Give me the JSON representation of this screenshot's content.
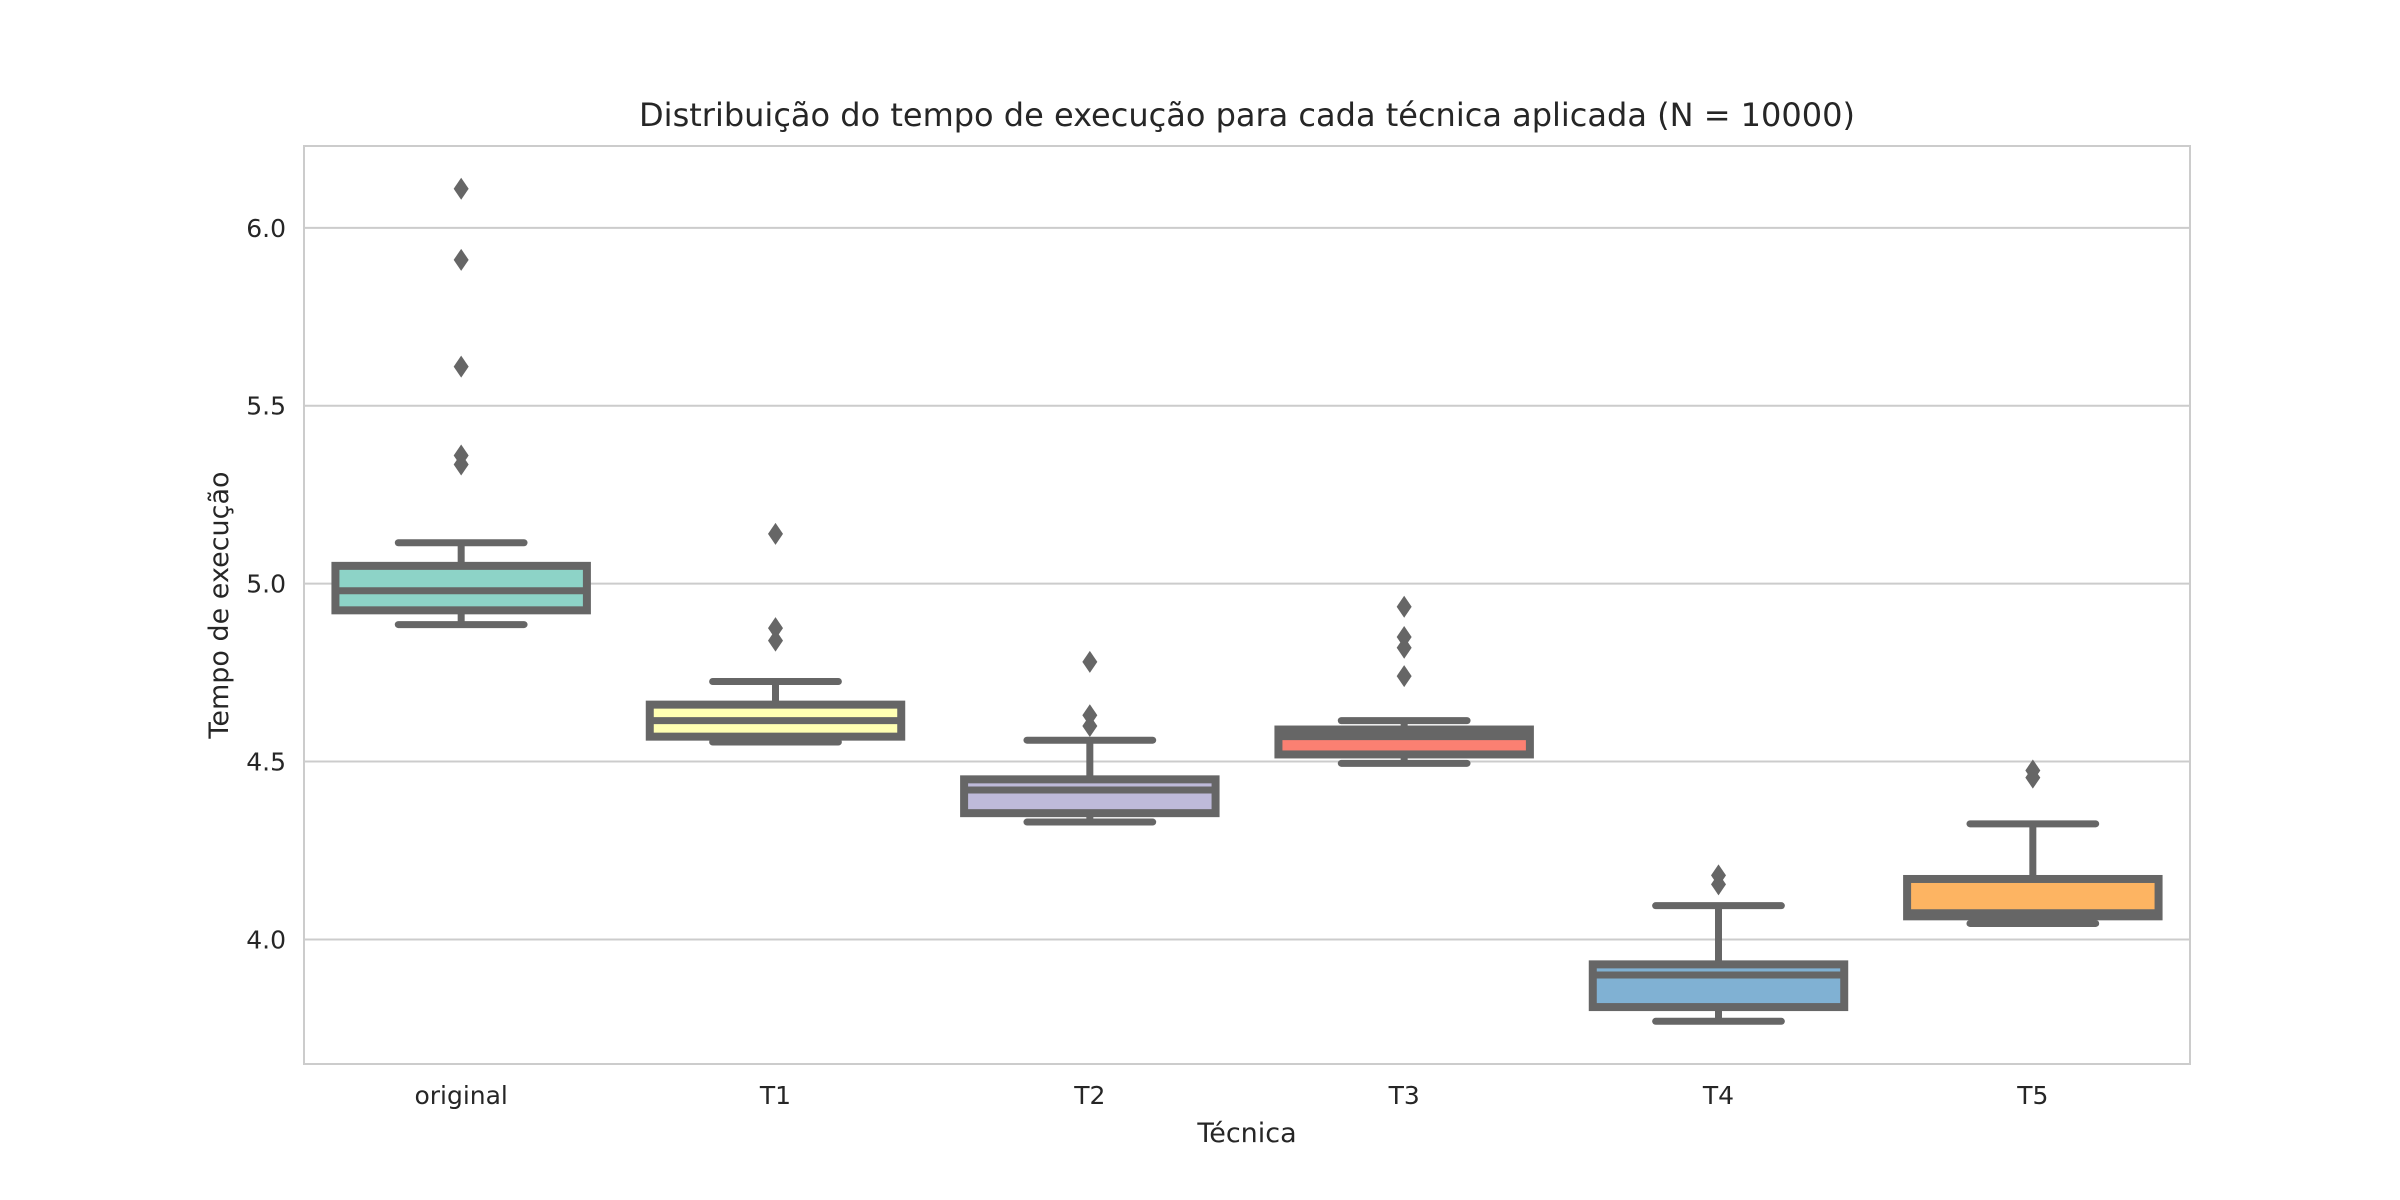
{
  "chart_data": {
    "type": "boxplot",
    "title": "Distribuição do tempo de execução para cada técnica aplicada (N = 10000)",
    "xlabel": "Técnica",
    "ylabel": "Tempo de execução",
    "ylim": [
      3.65,
      6.23
    ],
    "yticks": [
      4.0,
      4.5,
      5.0,
      5.5,
      6.0
    ],
    "ytick_labels": [
      "4.0",
      "4.5",
      "5.0",
      "5.5",
      "6.0"
    ],
    "grid": true,
    "edge_color": "#666666",
    "categories": [
      "original",
      "T1",
      "T2",
      "T3",
      "T4",
      "T5"
    ],
    "boxes": [
      {
        "name": "original",
        "color": "#8dd3c7",
        "whisker_low": 4.885,
        "q1": 4.925,
        "median": 4.98,
        "q3": 5.05,
        "whisker_high": 5.115,
        "outliers": [
          6.11,
          5.91,
          5.61,
          5.36,
          5.335
        ]
      },
      {
        "name": "T1",
        "color": "#ffffb3",
        "whisker_low": 4.555,
        "q1": 4.57,
        "median": 4.615,
        "q3": 4.66,
        "whisker_high": 4.725,
        "outliers": [
          5.14,
          4.875,
          4.84
        ]
      },
      {
        "name": "T2",
        "color": "#bebada",
        "whisker_low": 4.33,
        "q1": 4.355,
        "median": 4.42,
        "q3": 4.45,
        "whisker_high": 4.56,
        "outliers": [
          4.78,
          4.63,
          4.6
        ]
      },
      {
        "name": "T3",
        "color": "#fb8072",
        "whisker_low": 4.495,
        "q1": 4.52,
        "median": 4.57,
        "q3": 4.59,
        "whisker_high": 4.615,
        "outliers": [
          4.935,
          4.85,
          4.82,
          4.74
        ]
      },
      {
        "name": "T4",
        "color": "#80b1d3",
        "whisker_low": 3.77,
        "q1": 3.81,
        "median": 3.9,
        "q3": 3.93,
        "whisker_high": 4.095,
        "outliers": [
          4.18,
          4.155
        ]
      },
      {
        "name": "T5",
        "color": "#fdb462",
        "whisker_low": 4.045,
        "q1": 4.065,
        "median": 4.075,
        "q3": 4.17,
        "whisker_high": 4.325,
        "outliers": [
          4.475,
          4.455
        ]
      }
    ]
  }
}
